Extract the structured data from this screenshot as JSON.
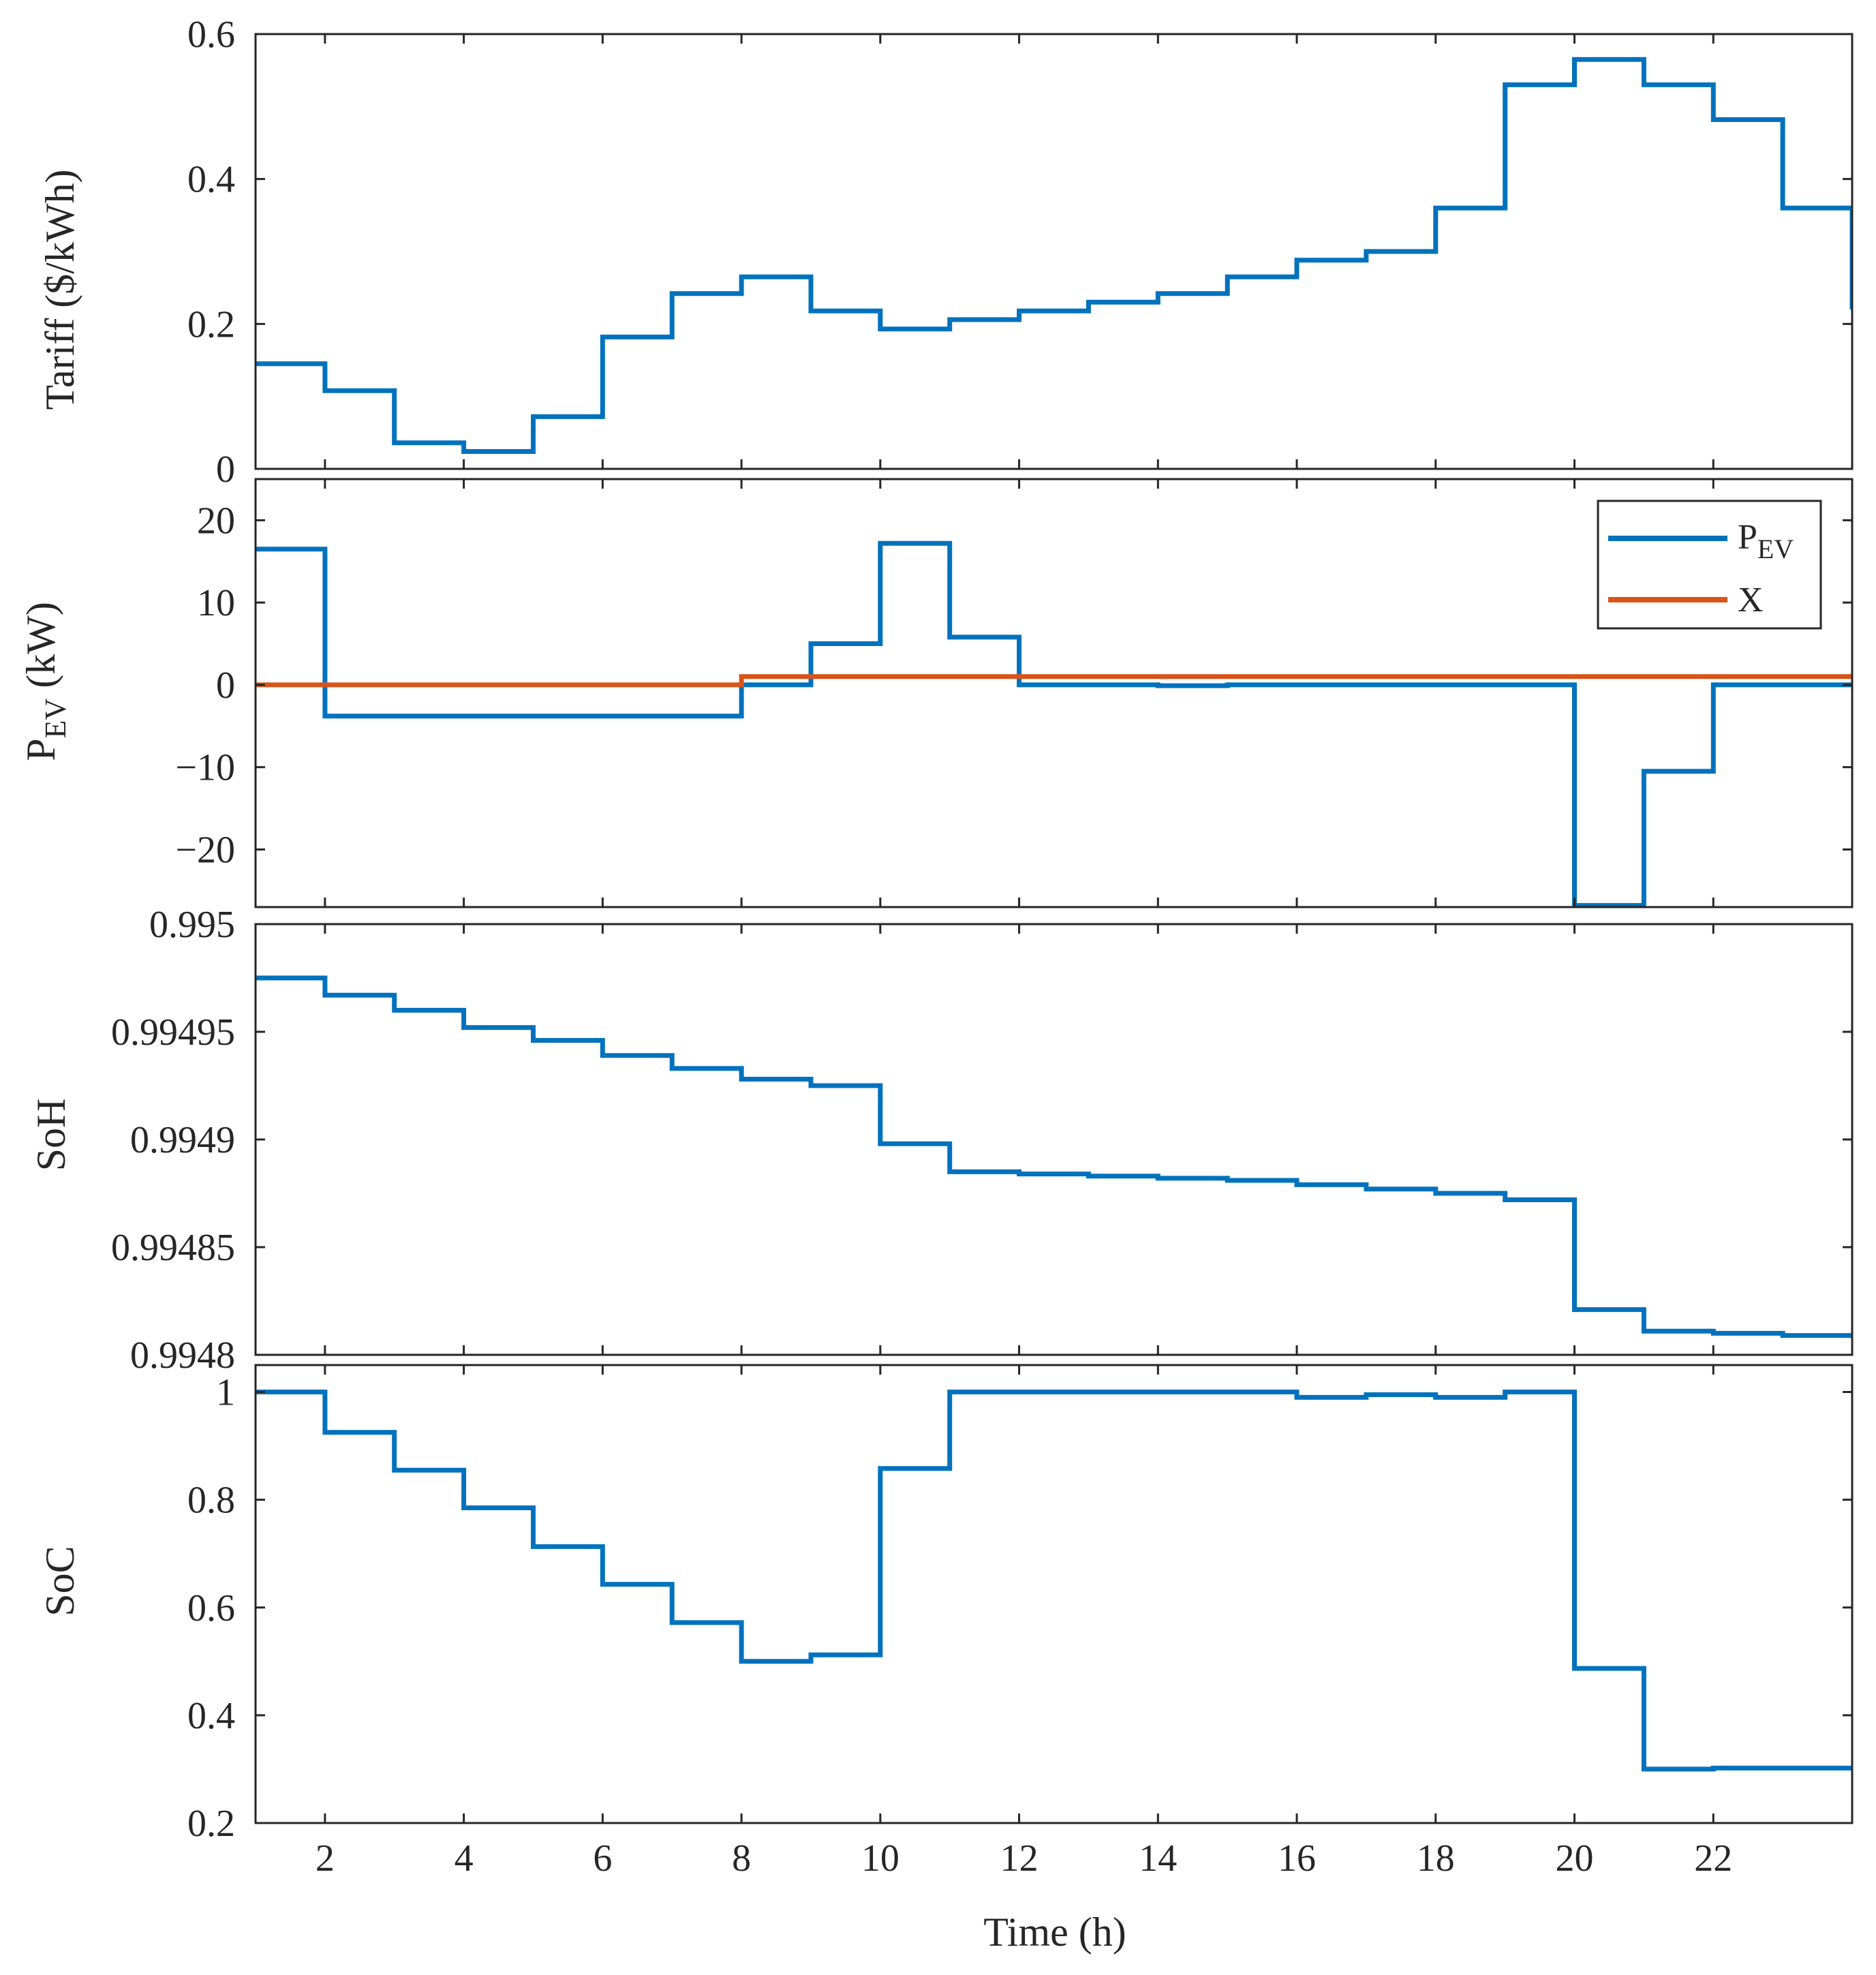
{
  "chart_data": [
    {
      "type": "line",
      "id": "tariff",
      "step": true,
      "ylabel": "Tariff ($/kWh)",
      "xlim": [
        1,
        24
      ],
      "ylim": [
        0,
        0.6
      ],
      "yticks": [
        0,
        0.2,
        0.4,
        0.6
      ],
      "ytick_labels": [
        "0",
        "0.2",
        "0.4",
        "0.6"
      ],
      "series": [
        {
          "name": "Tariff",
          "color": "#0072BD",
          "x": [
            1,
            2,
            3,
            4,
            5,
            6,
            7,
            8,
            9,
            10,
            11,
            12,
            13,
            14,
            15,
            16,
            17,
            18,
            19,
            20,
            21,
            22,
            23,
            24
          ],
          "values": [
            0.145,
            0.108,
            0.036,
            0.024,
            0.072,
            0.182,
            0.242,
            0.265,
            0.218,
            0.193,
            0.206,
            0.218,
            0.23,
            0.242,
            0.265,
            0.288,
            0.3,
            0.36,
            0.53,
            0.565,
            0.53,
            0.482,
            0.36,
            0.22
          ]
        }
      ]
    },
    {
      "type": "line",
      "id": "pev",
      "step": true,
      "ylabel_main": "P",
      "ylabel_sub": "EV",
      "ylabel_unit": " (kW)",
      "xlim": [
        1,
        24
      ],
      "ylim": [
        -27,
        25
      ],
      "yticks": [
        -20,
        -10,
        0,
        10,
        20
      ],
      "ytick_labels": [
        "−20",
        "−10",
        "0",
        "10",
        "20"
      ],
      "legend": {
        "placement": "top-right",
        "entries": [
          {
            "main": "P",
            "sub": "EV"
          },
          {
            "main": "X",
            "sub": ""
          }
        ]
      },
      "series": [
        {
          "name": "PEV",
          "color": "#0072BD",
          "x": [
            1,
            2,
            3,
            4,
            5,
            6,
            7,
            8,
            9,
            10,
            11,
            12,
            13,
            14,
            15,
            16,
            17,
            18,
            19,
            20,
            21,
            22,
            23,
            24
          ],
          "values": [
            16.5,
            -3.8,
            -3.8,
            -3.8,
            -3.8,
            -3.8,
            -3.8,
            0,
            5,
            17.2,
            5.8,
            0,
            0,
            -0.1,
            0,
            0,
            0,
            0,
            0,
            -26.8,
            -10.5,
            0,
            0,
            0
          ]
        },
        {
          "name": "X",
          "color": "#D95319",
          "x": [
            1,
            2,
            3,
            4,
            5,
            6,
            7,
            8,
            9,
            10,
            11,
            12,
            13,
            14,
            15,
            16,
            17,
            18,
            19,
            20,
            21,
            22,
            23,
            24
          ],
          "values": [
            0,
            0,
            0,
            0,
            0,
            0,
            0,
            1,
            1,
            1,
            1,
            1,
            1,
            1,
            1,
            1,
            1,
            1,
            1,
            1,
            1,
            1,
            1,
            1
          ]
        }
      ]
    },
    {
      "type": "line",
      "id": "soh",
      "step": true,
      "ylabel": "SoH",
      "xlim": [
        1,
        24
      ],
      "ylim": [
        0.9948,
        0.995
      ],
      "yticks": [
        0.9948,
        0.99485,
        0.9949,
        0.99495,
        0.995
      ],
      "ytick_labels": [
        "0.9948",
        "0.99485",
        "0.9949",
        "0.99495",
        "0.995"
      ],
      "series": [
        {
          "name": "SoH",
          "color": "#0072BD",
          "x": [
            1,
            2,
            3,
            4,
            5,
            6,
            7,
            8,
            9,
            10,
            11,
            12,
            13,
            14,
            15,
            16,
            17,
            18,
            19,
            20,
            21,
            22,
            23,
            24
          ],
          "values": [
            0.994975,
            0.994967,
            0.99496,
            0.994952,
            0.994946,
            0.994939,
            0.994933,
            0.994928,
            0.994925,
            0.994898,
            0.994885,
            0.994884,
            0.994883,
            0.994882,
            0.994881,
            0.994879,
            0.994877,
            0.994875,
            0.994872,
            0.994821,
            0.994811,
            0.99481,
            0.994809,
            0.994809
          ]
        }
      ]
    },
    {
      "type": "line",
      "id": "soc",
      "step": true,
      "ylabel": "SoC",
      "xlabel": "Time (h)",
      "xlim": [
        1,
        24
      ],
      "ylim": [
        0.2,
        1.05
      ],
      "yticks": [
        0.2,
        0.4,
        0.6,
        0.8,
        1
      ],
      "ytick_labels": [
        "0.2",
        "0.4",
        "0.6",
        "0.8",
        "1"
      ],
      "xticks": [
        2,
        4,
        6,
        8,
        10,
        12,
        14,
        16,
        18,
        20,
        22
      ],
      "xtick_labels": [
        "2",
        "4",
        "6",
        "8",
        "10",
        "12",
        "14",
        "16",
        "18",
        "20",
        "22"
      ],
      "series": [
        {
          "name": "SoC",
          "color": "#0072BD",
          "x": [
            1,
            2,
            3,
            4,
            5,
            6,
            7,
            8,
            9,
            10,
            11,
            12,
            13,
            14,
            15,
            16,
            17,
            18,
            19,
            20,
            21,
            22,
            23,
            24
          ],
          "values": [
            1.0,
            0.925,
            0.855,
            0.785,
            0.713,
            0.643,
            0.572,
            0.5,
            0.512,
            0.858,
            1.0,
            1.0,
            1.0,
            1.0,
            1.0,
            0.99,
            0.995,
            0.99,
            1.0,
            0.487,
            0.3,
            0.302,
            0.302,
            0.302
          ]
        }
      ]
    }
  ]
}
